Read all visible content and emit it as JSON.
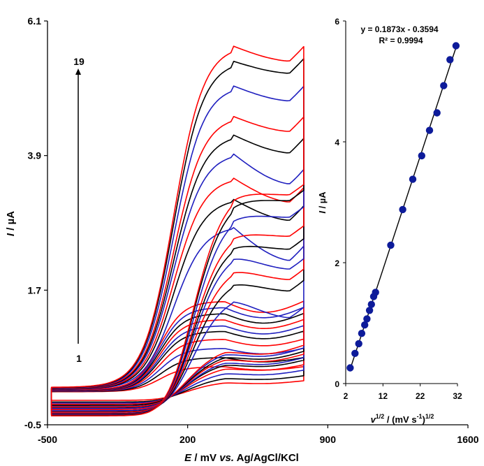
{
  "chart_data": [
    {
      "type": "line",
      "title": "",
      "xlabel_italic": "E",
      "xlabel_vs": "vs.",
      "xlabel_rest1": " / mV ",
      "xlabel_rest2": " Ag/AgCl/KCl",
      "ylabel_italic": "I",
      "ylabel_rest": " / µA",
      "xlim": [
        -500,
        1600
      ],
      "ylim": [
        -0.5,
        6.1
      ],
      "xticks": [
        -500,
        200,
        900,
        1600
      ],
      "yticks": [
        -0.5,
        1.7,
        3.9,
        6.1
      ],
      "xtick_labels": [
        "-500",
        "200",
        "900",
        "1600"
      ],
      "ytick_labels": [
        "-0.5",
        "1.7",
        "3.9",
        "6.1"
      ],
      "grid": false,
      "annotation": {
        "start_label": "1",
        "end_label": "19"
      },
      "series_colors": [
        "#ff0000",
        "#000000",
        "#1f1fbf"
      ],
      "potential_range_mV": [
        -480,
        780
      ],
      "series": [
        {
          "color": "#ff0000",
          "peak": 0.45,
          "cathodic_offset": -0.12,
          "final": 0.45
        },
        {
          "color": "#000000",
          "peak": 0.6,
          "cathodic_offset": -0.15,
          "final": 0.6
        },
        {
          "color": "#1f1fbf",
          "peak": 0.75,
          "cathodic_offset": -0.17,
          "final": 0.75
        },
        {
          "color": "#ff0000",
          "peak": 0.9,
          "cathodic_offset": -0.19,
          "final": 0.9
        },
        {
          "color": "#000000",
          "peak": 1.03,
          "cathodic_offset": -0.21,
          "final": 1.03
        },
        {
          "color": "#1f1fbf",
          "peak": 1.12,
          "cathodic_offset": -0.23,
          "final": 1.12
        },
        {
          "color": "#ff0000",
          "peak": 1.22,
          "cathodic_offset": -0.24,
          "final": 1.22
        },
        {
          "color": "#000000",
          "peak": 1.32,
          "cathodic_offset": -0.26,
          "final": 1.32
        },
        {
          "color": "#1f1fbf",
          "peak": 1.42,
          "cathodic_offset": -0.27,
          "final": 1.42
        },
        {
          "color": "#ff0000",
          "peak": 1.52,
          "cathodic_offset": -0.29,
          "final": 1.52
        },
        {
          "color": "#1f1fbf",
          "peak": 2.75,
          "cathodic_offset": -0.31,
          "final": 2.2
        },
        {
          "color": "#000000",
          "peak": 3.2,
          "cathodic_offset": -0.33,
          "final": 2.85
        },
        {
          "color": "#ff0000",
          "peak": 3.55,
          "cathodic_offset": -0.34,
          "final": 3.15
        },
        {
          "color": "#1f1fbf",
          "peak": 3.95,
          "cathodic_offset": -0.36,
          "final": 3.45
        },
        {
          "color": "#000000",
          "peak": 4.25,
          "cathodic_offset": -0.37,
          "final": 3.95
        },
        {
          "color": "#ff0000",
          "peak": 4.55,
          "cathodic_offset": -0.38,
          "final": 4.3
        },
        {
          "color": "#1f1fbf",
          "peak": 5.05,
          "cathodic_offset": -0.39,
          "final": 4.8
        },
        {
          "color": "#000000",
          "peak": 5.45,
          "cathodic_offset": -0.4,
          "final": 5.25
        },
        {
          "color": "#ff0000",
          "peak": 5.7,
          "cathodic_offset": -0.41,
          "final": 5.45
        }
      ]
    },
    {
      "type": "scatter",
      "title": "",
      "xlabel_italic": "v",
      "xlabel_sup1": "1/2",
      "xlabel_mid": " / (mV s",
      "xlabel_sup2": "-1",
      "xlabel_close": ")",
      "xlabel_sup3": "1/2",
      "ylabel_italic": "I",
      "ylabel_rest": " / µA",
      "xlim": [
        2,
        32
      ],
      "ylim": [
        0,
        6
      ],
      "xticks": [
        2,
        12,
        22,
        32
      ],
      "yticks": [
        0,
        2,
        4,
        6
      ],
      "xtick_labels": [
        "2",
        "12",
        "22",
        "32"
      ],
      "ytick_labels": [
        "0",
        "2",
        "4",
        "6"
      ],
      "grid": false,
      "equation": "y = 0.1873x - 0.3594",
      "r_squared": "R² = 0.9994",
      "fit": {
        "slope": 0.1873,
        "intercept": -0.3594
      },
      "marker_color": "#0d1b9a",
      "x": [
        3.2,
        4.5,
        5.5,
        6.3,
        7.1,
        7.7,
        8.4,
        8.9,
        9.5,
        10.0,
        14.1,
        17.3,
        20.0,
        22.4,
        24.5,
        26.5,
        28.3,
        30.0,
        31.6
      ],
      "y": [
        0.26,
        0.5,
        0.66,
        0.83,
        0.97,
        1.07,
        1.21,
        1.31,
        1.44,
        1.51,
        2.29,
        2.88,
        3.38,
        3.77,
        4.19,
        4.48,
        4.93,
        5.36,
        5.59
      ]
    }
  ]
}
